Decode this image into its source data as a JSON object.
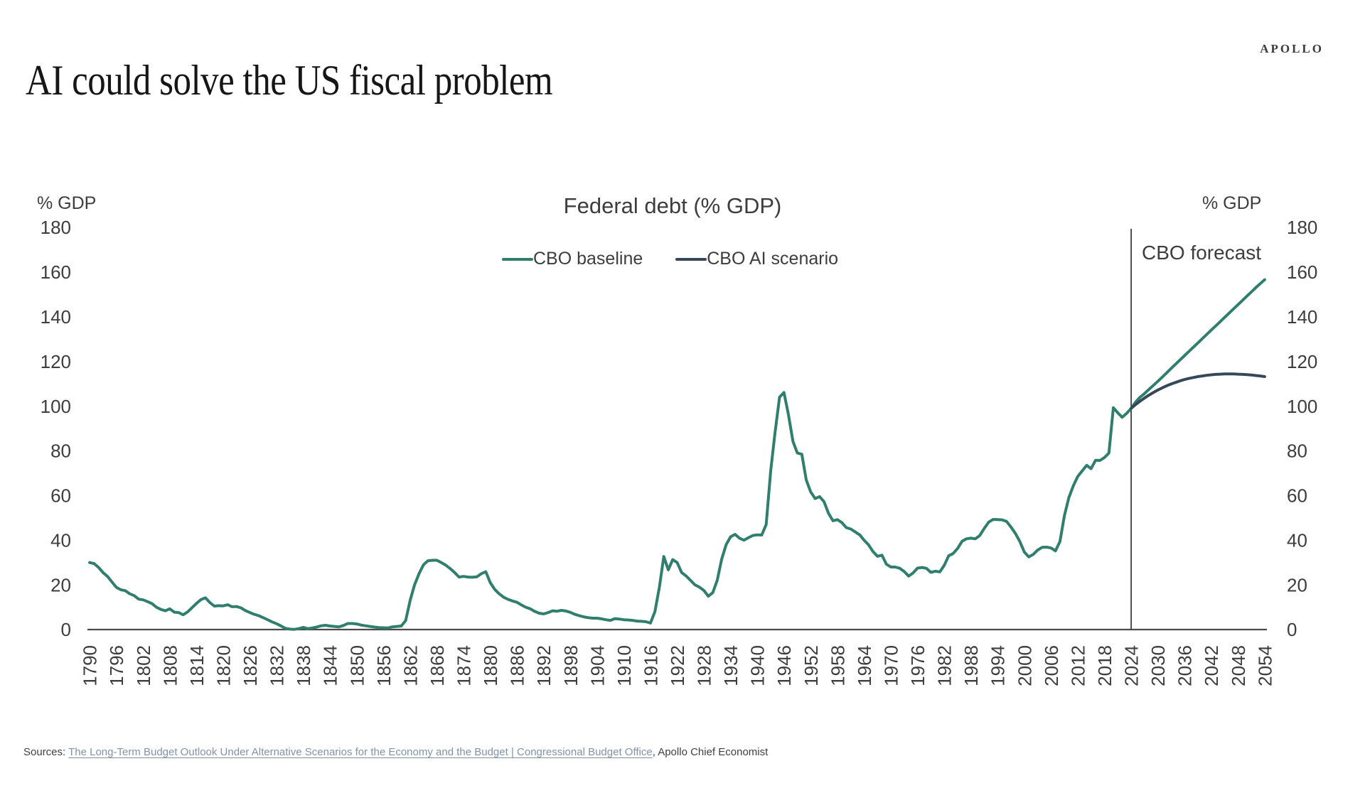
{
  "brand": "APOLLO",
  "title": "AI could solve the US fiscal problem",
  "footer": {
    "prefix": "Sources: ",
    "link_text": "The Long-Term Budget Outlook Under Alternative Scenarios for the Economy and the Budget | Congressional Budget Office",
    "suffix": ", Apollo Chief Economist"
  },
  "chart_data": {
    "type": "line",
    "title": "Federal debt (% GDP)",
    "left_axis_label": "% GDP",
    "right_axis_label": "% GDP",
    "ylim": [
      0,
      180
    ],
    "yticks": [
      0,
      20,
      40,
      60,
      80,
      100,
      120,
      140,
      160,
      180
    ],
    "x_range": [
      1790,
      2054
    ],
    "xticks": [
      1790,
      1796,
      1802,
      1808,
      1814,
      1820,
      1826,
      1832,
      1838,
      1844,
      1850,
      1856,
      1862,
      1868,
      1874,
      1880,
      1886,
      1892,
      1898,
      1904,
      1910,
      1916,
      1922,
      1928,
      1934,
      1940,
      1946,
      1952,
      1958,
      1964,
      1970,
      1976,
      1982,
      1988,
      1994,
      2000,
      2006,
      2012,
      2018,
      2024,
      2030,
      2036,
      2042,
      2048,
      2054
    ],
    "annotation": {
      "label": "CBO forecast",
      "x": 2024,
      "color": "#3f3f3f"
    },
    "axis_color": "#4a4a4a",
    "grid": false,
    "legend_position": "top-center",
    "series": [
      {
        "name": "CBO baseline",
        "color": "#2f7e6e",
        "start_year": 1790,
        "values": [
          30.0,
          29.5,
          27.8,
          25.5,
          23.8,
          21.3,
          18.9,
          17.8,
          17.4,
          16.0,
          15.2,
          13.6,
          13.3,
          12.5,
          11.6,
          10.0,
          9.0,
          8.4,
          9.3,
          7.8,
          7.6,
          6.6,
          7.9,
          9.8,
          11.7,
          13.4,
          14.2,
          12.1,
          10.5,
          10.7,
          10.6,
          11.1,
          10.2,
          10.3,
          9.7,
          8.5,
          7.6,
          6.8,
          6.2,
          5.3,
          4.4,
          3.4,
          2.6,
          1.6,
          0.5,
          0.2,
          0.1,
          0.4,
          1.0,
          0.4,
          0.7,
          1.1,
          1.7,
          1.9,
          1.6,
          1.4,
          1.2,
          1.8,
          2.7,
          2.7,
          2.5,
          2.0,
          1.7,
          1.4,
          1.1,
          0.9,
          0.8,
          0.7,
          1.2,
          1.4,
          1.6,
          4.0,
          13.0,
          20.0,
          25.0,
          29.0,
          30.8,
          31.0,
          31.0,
          30.0,
          28.8,
          27.3,
          25.5,
          23.5,
          23.8,
          23.5,
          23.4,
          23.6,
          25.0,
          25.9,
          21.0,
          18.0,
          16.0,
          14.5,
          13.5,
          12.8,
          12.2,
          11.0,
          10.0,
          9.3,
          8.1,
          7.3,
          7.0,
          7.6,
          8.4,
          8.2,
          8.6,
          8.3,
          7.7,
          6.8,
          6.2,
          5.7,
          5.3,
          5.1,
          5.1,
          4.8,
          4.4,
          4.1,
          4.9,
          4.7,
          4.4,
          4.3,
          4.1,
          3.8,
          3.7,
          3.5,
          2.9,
          8.0,
          19.0,
          32.7,
          26.7,
          31.3,
          30.0,
          25.5,
          24.0,
          22.0,
          20.0,
          19.0,
          17.5,
          14.9,
          16.5,
          22.0,
          31.5,
          38.0,
          41.5,
          42.6,
          40.9,
          40.0,
          41.1,
          42.1,
          42.4,
          42.3,
          47.0,
          70.9,
          88.3,
          104.0,
          106.1,
          96.2,
          84.3,
          79.0,
          78.5,
          66.9,
          61.6,
          58.6,
          59.5,
          57.2,
          52.0,
          48.7,
          49.2,
          47.9,
          45.6,
          45.0,
          43.7,
          42.4,
          40.0,
          37.9,
          34.9,
          32.8,
          33.3,
          29.3,
          28.0,
          28.0,
          27.4,
          26.0,
          23.9,
          25.3,
          27.5,
          27.8,
          27.4,
          25.6,
          26.1,
          25.8,
          28.7,
          33.0,
          34.0,
          36.3,
          39.5,
          40.6,
          40.9,
          40.6,
          42.1,
          45.3,
          48.1,
          49.3,
          49.2,
          49.1,
          48.4,
          45.9,
          43.0,
          39.4,
          34.7,
          32.5,
          33.6,
          35.6,
          36.8,
          36.9,
          36.5,
          35.2,
          39.4,
          51.0,
          59.0,
          64.3,
          68.5,
          71.0,
          73.5,
          72.0,
          75.8,
          75.7,
          77.0,
          79.0,
          99.3,
          97.0,
          95.0,
          96.8,
          99.0,
          101.8,
          104.0,
          105.6,
          107.5,
          109.3,
          111.1,
          113.0,
          114.9,
          116.9,
          118.8,
          120.7,
          122.6,
          124.5,
          126.4,
          128.3,
          130.2,
          132.1,
          134.0,
          135.9,
          137.8,
          139.7,
          141.6,
          143.5,
          145.4,
          147.3,
          149.2,
          151.1,
          153.0,
          154.8,
          156.6
        ]
      },
      {
        "name": "CBO AI scenario",
        "color": "#35485a",
        "start_year": 2024,
        "values": [
          99.0,
          100.7,
          102.2,
          103.6,
          104.9,
          106.1,
          107.2,
          108.2,
          109.1,
          109.9,
          110.6,
          111.3,
          111.9,
          112.4,
          112.8,
          113.2,
          113.5,
          113.8,
          114.0,
          114.2,
          114.3,
          114.4,
          114.4,
          114.4,
          114.3,
          114.2,
          114.1,
          113.9,
          113.7,
          113.5,
          113.2
        ]
      }
    ]
  }
}
